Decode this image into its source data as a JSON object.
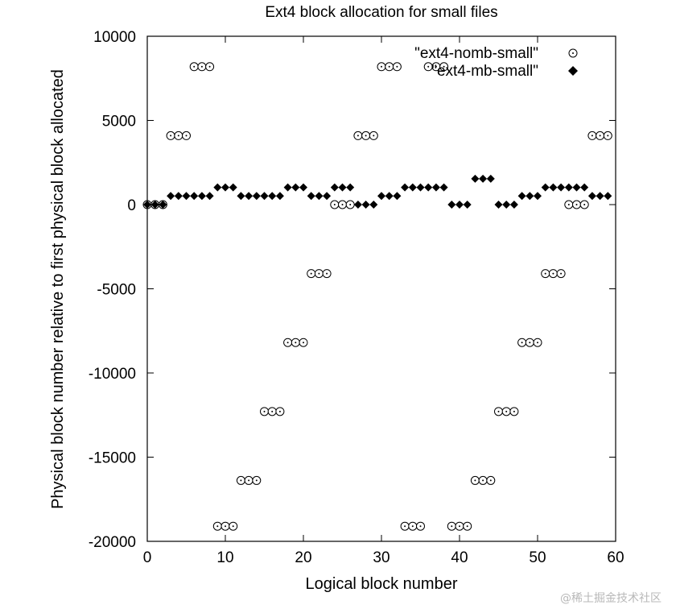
{
  "chart_data": {
    "type": "scatter",
    "title": "Ext4 block allocation for small files",
    "xlabel": "Logical block number",
    "ylabel": "Physical block number relative to first physical block allocated",
    "xlim": [
      0,
      60
    ],
    "ylim": [
      -20000,
      10000
    ],
    "xticks": [
      0,
      10,
      20,
      30,
      40,
      50,
      60
    ],
    "yticks": [
      10000,
      5000,
      0,
      -5000,
      -10000,
      -15000,
      -20000
    ],
    "grid": false,
    "legend": "top-right",
    "series": [
      {
        "name": "\"ext4-nomb-small\"",
        "marker": "open-circle-dot",
        "x": [
          0,
          1,
          2,
          3,
          4,
          5,
          6,
          7,
          8,
          9,
          10,
          11,
          12,
          13,
          14,
          15,
          16,
          17,
          18,
          19,
          20,
          21,
          22,
          23,
          24,
          25,
          26,
          27,
          28,
          29,
          30,
          31,
          32,
          33,
          34,
          35,
          36,
          37,
          38,
          39,
          40,
          41,
          42,
          43,
          44,
          45,
          46,
          47,
          48,
          49,
          50,
          51,
          52,
          53,
          54,
          55,
          56,
          57,
          58,
          59
        ],
        "y": [
          0,
          0,
          0,
          4096,
          4096,
          4096,
          8192,
          8192,
          8192,
          -19100,
          -19100,
          -19100,
          -16384,
          -16384,
          -16384,
          -12288,
          -12288,
          -12288,
          -8192,
          -8192,
          -8192,
          -4096,
          -4096,
          -4096,
          0,
          0,
          0,
          4096,
          4096,
          4096,
          8192,
          8192,
          8192,
          -19100,
          -19100,
          -19100,
          8192,
          8192,
          8192,
          -19100,
          -19100,
          -19100,
          -16384,
          -16384,
          -16384,
          -12288,
          -12288,
          -12288,
          -8192,
          -8192,
          -8192,
          -4096,
          -4096,
          -4096,
          0,
          0,
          0,
          4096,
          4096,
          4096
        ]
      },
      {
        "name": "\"ext4-mb-small\"",
        "marker": "filled-diamond",
        "x": [
          0,
          1,
          2,
          3,
          4,
          5,
          6,
          7,
          8,
          9,
          10,
          11,
          12,
          13,
          14,
          15,
          16,
          17,
          18,
          19,
          20,
          21,
          22,
          23,
          24,
          25,
          26,
          27,
          28,
          29,
          30,
          31,
          32,
          33,
          34,
          35,
          36,
          37,
          38,
          39,
          40,
          41,
          42,
          43,
          44,
          45,
          46,
          47,
          48,
          49,
          50,
          51,
          52,
          53,
          54,
          55,
          56,
          57,
          58,
          59
        ],
        "y": [
          0,
          0,
          0,
          512,
          512,
          512,
          512,
          512,
          512,
          1024,
          1024,
          1024,
          512,
          512,
          512,
          512,
          512,
          512,
          1024,
          1024,
          1024,
          512,
          512,
          512,
          1024,
          1024,
          1024,
          0,
          0,
          0,
          512,
          512,
          512,
          1024,
          1024,
          1024,
          1024,
          1024,
          1024,
          0,
          0,
          0,
          1536,
          1536,
          1536,
          0,
          0,
          0,
          512,
          512,
          512,
          1024,
          1024,
          1024,
          1024,
          1024,
          1024,
          512,
          512,
          512
        ]
      }
    ]
  },
  "watermark": "@稀土掘金技术社区"
}
